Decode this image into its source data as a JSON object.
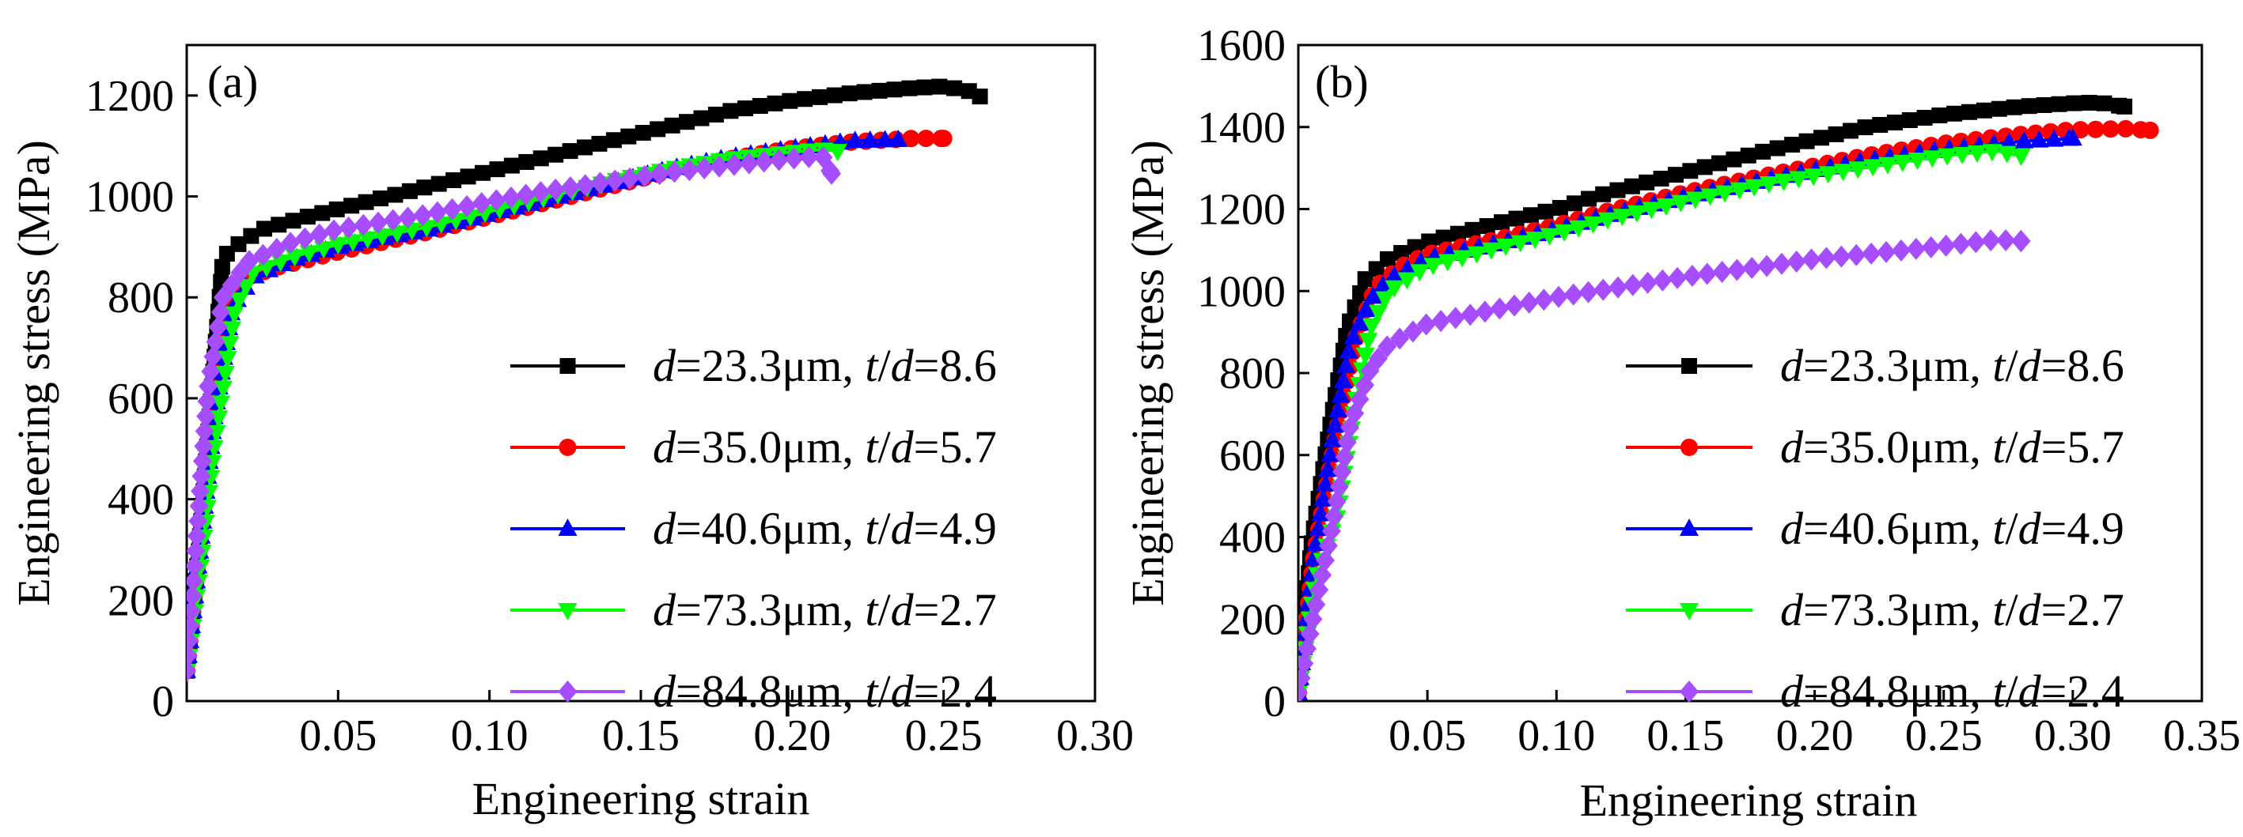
{
  "chart_data": [
    {
      "type": "line",
      "panel_label": "(a)",
      "xlabel": "Engineering strain",
      "ylabel": "Engineering stress (MPa)",
      "xlim": [
        0,
        0.3
      ],
      "ylim": [
        0,
        1300
      ],
      "xticks": [
        0.05,
        0.1,
        0.15,
        0.2,
        0.25,
        0.3
      ],
      "xtick_labels": [
        "0.05",
        "0.10",
        "0.15",
        "0.20",
        "0.25",
        "0.30"
      ],
      "yticks": [
        0,
        200,
        400,
        600,
        800,
        1000,
        1200
      ],
      "ytick_labels": [
        "0",
        "200",
        "400",
        "600",
        "800",
        "1000",
        "1200"
      ],
      "legend_position": "lower-right",
      "series": [
        {
          "name": "d=23.3μm, t/d=8.6",
          "label_parts": [
            [
              "d",
              true
            ],
            [
              "=23.3μm, ",
              false
            ],
            [
              "t",
              true
            ],
            [
              "/",
              false
            ],
            [
              "d",
              true
            ],
            [
              "=8.6",
              false
            ]
          ],
          "color": "#000000",
          "marker": "square",
          "points": [
            [
              0,
              60
            ],
            [
              0.004,
              300
            ],
            [
              0.008,
              600
            ],
            [
              0.012,
              880
            ],
            [
              0.018,
              910
            ],
            [
              0.025,
              935
            ],
            [
              0.04,
              960
            ],
            [
              0.06,
              990
            ],
            [
              0.08,
              1020
            ],
            [
              0.1,
              1050
            ],
            [
              0.12,
              1080
            ],
            [
              0.14,
              1110
            ],
            [
              0.16,
              1140
            ],
            [
              0.18,
              1170
            ],
            [
              0.2,
              1190
            ],
            [
              0.22,
              1205
            ],
            [
              0.24,
              1215
            ],
            [
              0.25,
              1218
            ],
            [
              0.258,
              1210
            ],
            [
              0.262,
              1198
            ]
          ]
        },
        {
          "name": "d=35.0μm, t/d=5.7",
          "label_parts": [
            [
              "d",
              true
            ],
            [
              "=35.0μm, ",
              false
            ],
            [
              "t",
              true
            ],
            [
              "/",
              false
            ],
            [
              "d",
              true
            ],
            [
              "=5.7",
              false
            ]
          ],
          "color": "#ff0000",
          "marker": "circle",
          "points": [
            [
              0,
              60
            ],
            [
              0.004,
              300
            ],
            [
              0.008,
              560
            ],
            [
              0.013,
              780
            ],
            [
              0.02,
              840
            ],
            [
              0.03,
              860
            ],
            [
              0.05,
              890
            ],
            [
              0.08,
              930
            ],
            [
              0.1,
              960
            ],
            [
              0.12,
              990
            ],
            [
              0.14,
              1020
            ],
            [
              0.16,
              1050
            ],
            [
              0.18,
              1075
            ],
            [
              0.2,
              1095
            ],
            [
              0.22,
              1108
            ],
            [
              0.24,
              1115
            ],
            [
              0.25,
              1115
            ]
          ]
        },
        {
          "name": "d=40.6μm, t/d=4.9",
          "label_parts": [
            [
              "d",
              true
            ],
            [
              "=40.6μm, ",
              false
            ],
            [
              "t",
              true
            ],
            [
              "/",
              false
            ],
            [
              "d",
              true
            ],
            [
              "=4.9",
              false
            ]
          ],
          "color": "#0000ff",
          "marker": "triangle",
          "points": [
            [
              0,
              60
            ],
            [
              0.004,
              280
            ],
            [
              0.009,
              560
            ],
            [
              0.015,
              780
            ],
            [
              0.022,
              840
            ],
            [
              0.035,
              875
            ],
            [
              0.05,
              900
            ],
            [
              0.08,
              935
            ],
            [
              0.1,
              965
            ],
            [
              0.12,
              995
            ],
            [
              0.14,
              1025
            ],
            [
              0.16,
              1055
            ],
            [
              0.18,
              1078
            ],
            [
              0.2,
              1095
            ],
            [
              0.22,
              1110
            ],
            [
              0.235,
              1112
            ]
          ]
        },
        {
          "name": "d=73.3μm, t/d=2.7",
          "label_parts": [
            [
              "d",
              true
            ],
            [
              "=73.3μm, ",
              false
            ],
            [
              "t",
              true
            ],
            [
              "/",
              false
            ],
            [
              "d",
              true
            ],
            [
              "=2.7",
              false
            ]
          ],
          "color": "#00ff00",
          "marker": "triangle-down",
          "points": [
            [
              0,
              60
            ],
            [
              0.004,
              240
            ],
            [
              0.009,
              500
            ],
            [
              0.016,
              780
            ],
            [
              0.022,
              850
            ],
            [
              0.035,
              880
            ],
            [
              0.05,
              905
            ],
            [
              0.08,
              940
            ],
            [
              0.1,
              970
            ],
            [
              0.12,
              1000
            ],
            [
              0.14,
              1030
            ],
            [
              0.16,
              1055
            ],
            [
              0.18,
              1075
            ],
            [
              0.2,
              1088
            ],
            [
              0.21,
              1093
            ],
            [
              0.215,
              1090
            ]
          ]
        },
        {
          "name": "d=84.8μm, t/d=2.4",
          "label_parts": [
            [
              "d",
              true
            ],
            [
              "=84.8μm, ",
              false
            ],
            [
              "t",
              true
            ],
            [
              "/",
              false
            ],
            [
              "d",
              true
            ],
            [
              "=2.4",
              false
            ]
          ],
          "color": "#a64dff",
          "marker": "diamond",
          "points": [
            [
              0,
              60
            ],
            [
              0.003,
              300
            ],
            [
              0.007,
              620
            ],
            [
              0.012,
              800
            ],
            [
              0.02,
              870
            ],
            [
              0.035,
              910
            ],
            [
              0.05,
              935
            ],
            [
              0.08,
              965
            ],
            [
              0.1,
              990
            ],
            [
              0.12,
              1012
            ],
            [
              0.14,
              1030
            ],
            [
              0.16,
              1048
            ],
            [
              0.18,
              1062
            ],
            [
              0.2,
              1075
            ],
            [
              0.21,
              1080
            ],
            [
              0.213,
              1045
            ]
          ]
        }
      ]
    },
    {
      "type": "line",
      "panel_label": "(b)",
      "xlabel": "Engineering strain",
      "ylabel": "Engineering stress (MPa)",
      "xlim": [
        0,
        0.35
      ],
      "ylim": [
        0,
        1600
      ],
      "xticks": [
        0.05,
        0.1,
        0.15,
        0.2,
        0.25,
        0.3,
        0.35
      ],
      "xtick_labels": [
        "0.05",
        "0.10",
        "0.15",
        "0.20",
        "0.25",
        "0.30",
        "0.35"
      ],
      "yticks": [
        0,
        200,
        400,
        600,
        800,
        1000,
        1200,
        1400,
        1600
      ],
      "ytick_labels": [
        "0",
        "200",
        "400",
        "600",
        "800",
        "1000",
        "1200",
        "1400",
        "1600"
      ],
      "legend_position": "lower-right",
      "series": [
        {
          "name": "d=23.3μm, t/d=8.6",
          "label_parts": [
            [
              "d",
              true
            ],
            [
              "=23.3μm, ",
              false
            ],
            [
              "t",
              true
            ],
            [
              "/",
              false
            ],
            [
              "d",
              true
            ],
            [
              "=8.6",
              false
            ]
          ],
          "color": "#000000",
          "marker": "square",
          "points": [
            [
              0,
              20
            ],
            [
              0.005,
              380
            ],
            [
              0.012,
              660
            ],
            [
              0.019,
              910
            ],
            [
              0.026,
              1030
            ],
            [
              0.035,
              1080
            ],
            [
              0.05,
              1120
            ],
            [
              0.08,
              1170
            ],
            [
              0.1,
              1200
            ],
            [
              0.12,
              1240
            ],
            [
              0.15,
              1290
            ],
            [
              0.18,
              1340
            ],
            [
              0.2,
              1370
            ],
            [
              0.22,
              1400
            ],
            [
              0.25,
              1430
            ],
            [
              0.28,
              1450
            ],
            [
              0.3,
              1458
            ],
            [
              0.31,
              1460
            ],
            [
              0.32,
              1450
            ]
          ]
        },
        {
          "name": "d=35.0μm, t/d=5.7",
          "label_parts": [
            [
              "d",
              true
            ],
            [
              "=35.0μm, ",
              false
            ],
            [
              "t",
              true
            ],
            [
              "/",
              false
            ],
            [
              "d",
              true
            ],
            [
              "=5.7",
              false
            ]
          ],
          "color": "#ff0000",
          "marker": "circle",
          "points": [
            [
              0,
              20
            ],
            [
              0.006,
              350
            ],
            [
              0.014,
              630
            ],
            [
              0.022,
              880
            ],
            [
              0.03,
              1010
            ],
            [
              0.04,
              1060
            ],
            [
              0.05,
              1090
            ],
            [
              0.08,
              1130
            ],
            [
              0.1,
              1160
            ],
            [
              0.12,
              1195
            ],
            [
              0.15,
              1240
            ],
            [
              0.18,
              1280
            ],
            [
              0.2,
              1305
            ],
            [
              0.22,
              1330
            ],
            [
              0.25,
              1360
            ],
            [
              0.28,
              1382
            ],
            [
              0.3,
              1393
            ],
            [
              0.32,
              1396
            ],
            [
              0.33,
              1392
            ]
          ]
        },
        {
          "name": "d=40.6μm, t/d=4.9",
          "label_parts": [
            [
              "d",
              true
            ],
            [
              "=40.6μm, ",
              false
            ],
            [
              "t",
              true
            ],
            [
              "/",
              false
            ],
            [
              "d",
              true
            ],
            [
              "=4.9",
              false
            ]
          ],
          "color": "#0000ff",
          "marker": "triangle",
          "points": [
            [
              0,
              20
            ],
            [
              0.006,
              350
            ],
            [
              0.013,
              630
            ],
            [
              0.02,
              870
            ],
            [
              0.028,
              980
            ],
            [
              0.035,
              1030
            ],
            [
              0.05,
              1080
            ],
            [
              0.08,
              1120
            ],
            [
              0.1,
              1150
            ],
            [
              0.12,
              1185
            ],
            [
              0.15,
              1230
            ],
            [
              0.18,
              1270
            ],
            [
              0.2,
              1295
            ],
            [
              0.22,
              1318
            ],
            [
              0.25,
              1345
            ],
            [
              0.28,
              1365
            ],
            [
              0.3,
              1372
            ]
          ]
        },
        {
          "name": "d=73.3μm, t/d=2.7",
          "label_parts": [
            [
              "d",
              true
            ],
            [
              "=73.3μm, ",
              false
            ],
            [
              "t",
              true
            ],
            [
              "/",
              false
            ],
            [
              "d",
              true
            ],
            [
              "=2.7",
              false
            ]
          ],
          "color": "#00ff00",
          "marker": "triangle-down",
          "points": [
            [
              0,
              20
            ],
            [
              0.007,
              300
            ],
            [
              0.015,
              450
            ],
            [
              0.022,
              720
            ],
            [
              0.028,
              910
            ],
            [
              0.035,
              1000
            ],
            [
              0.05,
              1060
            ],
            [
              0.08,
              1110
            ],
            [
              0.1,
              1140
            ],
            [
              0.12,
              1175
            ],
            [
              0.15,
              1220
            ],
            [
              0.18,
              1260
            ],
            [
              0.2,
              1282
            ],
            [
              0.22,
              1302
            ],
            [
              0.25,
              1330
            ],
            [
              0.27,
              1342
            ],
            [
              0.28,
              1330
            ]
          ]
        },
        {
          "name": "d=84.8μm, t/d=2.4",
          "label_parts": [
            [
              "d",
              true
            ],
            [
              "=84.8μm, ",
              false
            ],
            [
              "t",
              true
            ],
            [
              "/",
              false
            ],
            [
              "d",
              true
            ],
            [
              "=2.4",
              false
            ]
          ],
          "color": "#a64dff",
          "marker": "diamond",
          "points": [
            [
              0,
              20
            ],
            [
              0.005,
              180
            ],
            [
              0.013,
              420
            ],
            [
              0.02,
              670
            ],
            [
              0.028,
              810
            ],
            [
              0.035,
              870
            ],
            [
              0.05,
              920
            ],
            [
              0.08,
              960
            ],
            [
              0.1,
              985
            ],
            [
              0.12,
              1005
            ],
            [
              0.15,
              1035
            ],
            [
              0.18,
              1060
            ],
            [
              0.2,
              1078
            ],
            [
              0.22,
              1090
            ],
            [
              0.25,
              1110
            ],
            [
              0.27,
              1125
            ],
            [
              0.28,
              1122
            ]
          ]
        }
      ]
    }
  ]
}
